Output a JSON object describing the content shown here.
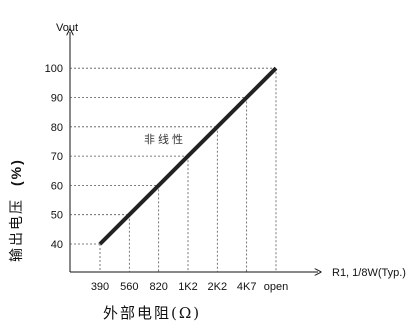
{
  "chart_data": {
    "type": "line",
    "categories": [
      "390",
      "560",
      "820",
      "1K2",
      "2K2",
      "4K7",
      "open"
    ],
    "values": [
      40,
      50,
      60,
      70,
      80,
      90,
      100
    ],
    "y_ticks": [
      40,
      50,
      60,
      70,
      80,
      90,
      100
    ],
    "ylim": [
      30,
      110
    ],
    "ylabel_top": "Vout",
    "xlabel_right": "R1, 1/8W(Typ.)",
    "xlabel": "外部电阻(Ω)",
    "ylabel": "输出电压",
    "ylabel_unit": "(%)",
    "annotation": "非线性",
    "grid": "dashed guide lines to each point",
    "line_color": "#222222"
  }
}
